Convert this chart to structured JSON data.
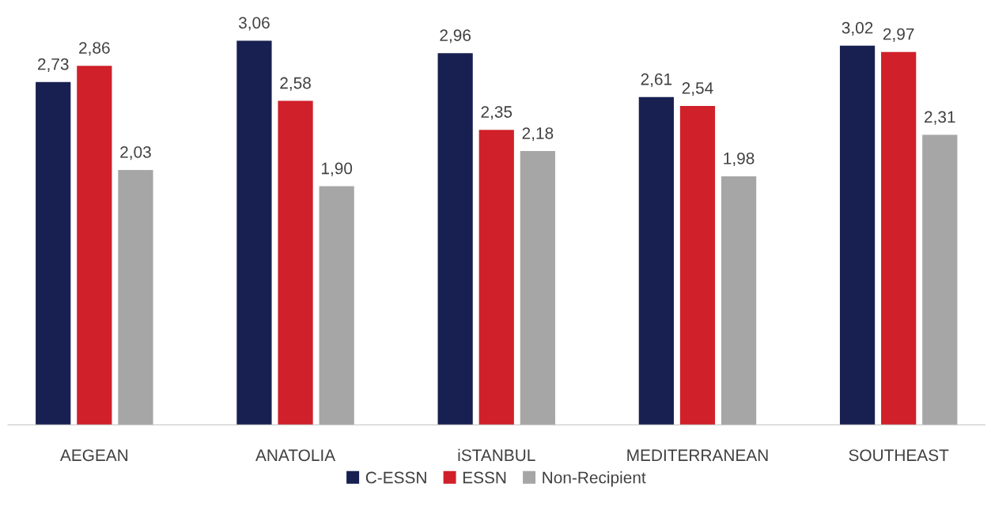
{
  "chart_data": {
    "type": "bar",
    "categories": [
      "AEGEAN",
      "ANATOLIA",
      "iSTANBUL",
      "MEDITERRANEAN",
      "SOUTHEAST"
    ],
    "series": [
      {
        "name": "C-ESSN",
        "color": "#172050",
        "values": [
          2.73,
          3.06,
          2.96,
          2.61,
          3.02
        ],
        "value_labels": [
          "2,73",
          "3,06",
          "2,96",
          "2,61",
          "3,02"
        ]
      },
      {
        "name": "ESSN",
        "color": "#d0202a",
        "values": [
          2.86,
          2.58,
          2.35,
          2.54,
          2.97
        ],
        "value_labels": [
          "2,86",
          "2,58",
          "2,35",
          "2,54",
          "2,97"
        ]
      },
      {
        "name": "Non-Recipient",
        "color": "#a6a6a6",
        "values": [
          2.03,
          1.9,
          2.18,
          1.98,
          2.31
        ],
        "value_labels": [
          "2,03",
          "1,90",
          "2,18",
          "1,98",
          "2,31"
        ]
      }
    ],
    "tick_labels": "x",
    "grid": false,
    "legend": "bottom"
  }
}
